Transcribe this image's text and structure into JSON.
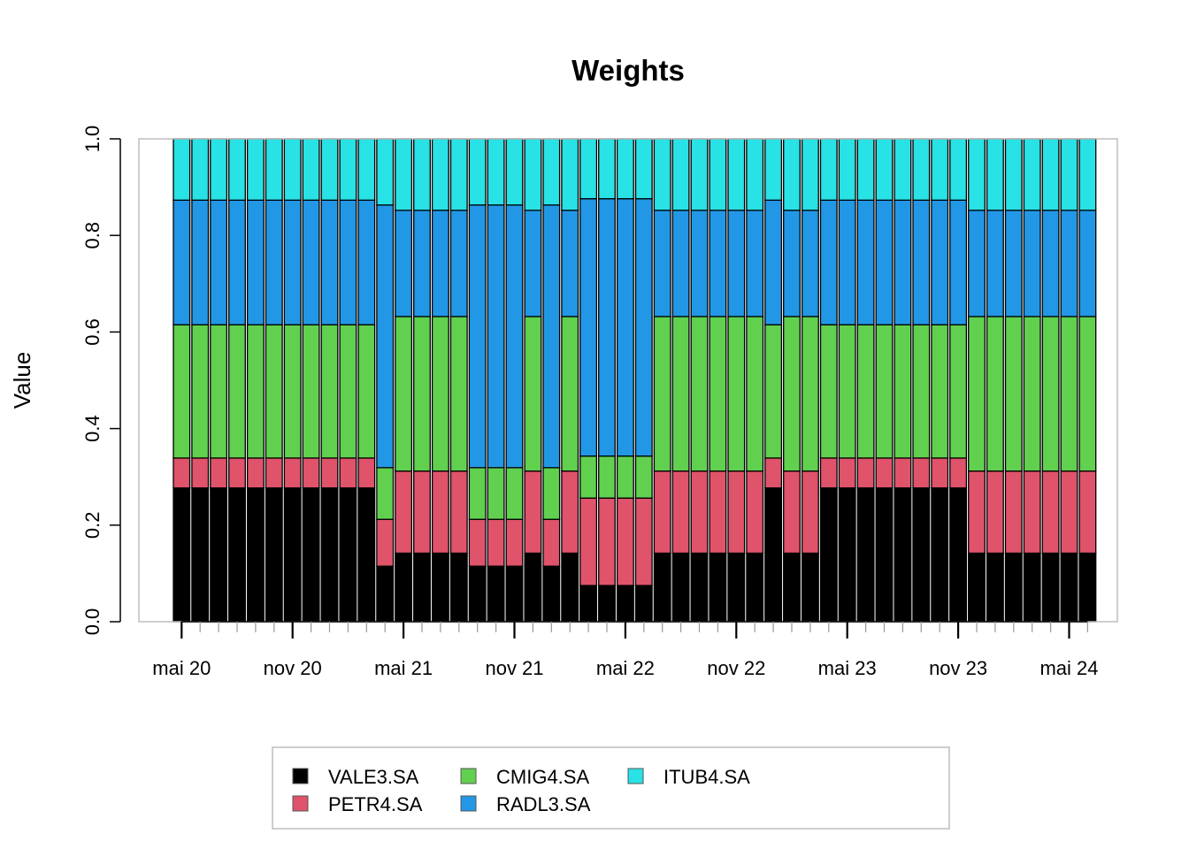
{
  "chart_data": {
    "type": "bar",
    "stacked": true,
    "title": "Weights",
    "xlabel": "",
    "ylabel": "Value",
    "ylim": [
      0,
      1
    ],
    "y_ticks": [
      "0.0",
      "0.2",
      "0.4",
      "0.6",
      "0.8",
      "1.0"
    ],
    "x_tick_labels": [
      "mai 20",
      "nov 20",
      "mai 21",
      "nov 21",
      "mai 22",
      "nov 22",
      "mai 23",
      "nov 23",
      "mai 24"
    ],
    "categories": [
      "2020-05",
      "2020-06",
      "2020-07",
      "2020-08",
      "2020-09",
      "2020-10",
      "2020-11",
      "2020-12",
      "2021-01",
      "2021-02",
      "2021-03",
      "2021-04",
      "2021-05",
      "2021-06",
      "2021-07",
      "2021-08",
      "2021-09",
      "2021-10",
      "2021-11",
      "2021-12",
      "2022-01",
      "2022-02",
      "2022-03",
      "2022-04",
      "2022-05",
      "2022-06",
      "2022-07",
      "2022-08",
      "2022-09",
      "2022-10",
      "2022-11",
      "2022-12",
      "2023-01",
      "2023-02",
      "2023-03",
      "2023-04",
      "2023-05",
      "2023-06",
      "2023-07",
      "2023-08",
      "2023-09",
      "2023-10",
      "2023-11",
      "2023-12",
      "2024-01",
      "2024-02",
      "2024-03",
      "2024-04",
      "2024-05",
      "2024-06"
    ],
    "series": [
      {
        "name": "VALE3.SA",
        "color": "#000000",
        "values": [
          0.277,
          0.277,
          0.277,
          0.277,
          0.277,
          0.277,
          0.277,
          0.277,
          0.277,
          0.277,
          0.277,
          0.115,
          0.142,
          0.142,
          0.142,
          0.142,
          0.115,
          0.115,
          0.115,
          0.142,
          0.115,
          0.142,
          0.075,
          0.075,
          0.075,
          0.075,
          0.142,
          0.142,
          0.142,
          0.142,
          0.142,
          0.142,
          0.277,
          0.142,
          0.142,
          0.277,
          0.277,
          0.277,
          0.277,
          0.277,
          0.277,
          0.277,
          0.277,
          0.142,
          0.142,
          0.142,
          0.142,
          0.142,
          0.142,
          0.142
        ]
      },
      {
        "name": "PETR4.SA",
        "color": "#df536b",
        "values": [
          0.062,
          0.062,
          0.062,
          0.062,
          0.062,
          0.062,
          0.062,
          0.062,
          0.062,
          0.062,
          0.062,
          0.097,
          0.17,
          0.17,
          0.17,
          0.17,
          0.097,
          0.097,
          0.097,
          0.17,
          0.097,
          0.17,
          0.181,
          0.181,
          0.181,
          0.181,
          0.17,
          0.17,
          0.17,
          0.17,
          0.17,
          0.17,
          0.062,
          0.17,
          0.17,
          0.062,
          0.062,
          0.062,
          0.062,
          0.062,
          0.062,
          0.062,
          0.062,
          0.17,
          0.17,
          0.17,
          0.17,
          0.17,
          0.17,
          0.17
        ]
      },
      {
        "name": "CMIG4.SA",
        "color": "#61d04f",
        "values": [
          0.276,
          0.276,
          0.276,
          0.276,
          0.276,
          0.276,
          0.276,
          0.276,
          0.276,
          0.276,
          0.276,
          0.107,
          0.32,
          0.32,
          0.32,
          0.32,
          0.107,
          0.107,
          0.107,
          0.32,
          0.107,
          0.32,
          0.087,
          0.087,
          0.087,
          0.087,
          0.32,
          0.32,
          0.32,
          0.32,
          0.32,
          0.32,
          0.276,
          0.32,
          0.32,
          0.276,
          0.276,
          0.276,
          0.276,
          0.276,
          0.276,
          0.276,
          0.276,
          0.32,
          0.32,
          0.32,
          0.32,
          0.32,
          0.32,
          0.32
        ]
      },
      {
        "name": "RADL3.SA",
        "color": "#2297e6",
        "values": [
          0.258,
          0.258,
          0.258,
          0.258,
          0.258,
          0.258,
          0.258,
          0.258,
          0.258,
          0.258,
          0.258,
          0.544,
          0.22,
          0.22,
          0.22,
          0.22,
          0.544,
          0.544,
          0.544,
          0.22,
          0.544,
          0.22,
          0.533,
          0.533,
          0.533,
          0.533,
          0.22,
          0.22,
          0.22,
          0.22,
          0.22,
          0.22,
          0.258,
          0.22,
          0.22,
          0.258,
          0.258,
          0.258,
          0.258,
          0.258,
          0.258,
          0.258,
          0.258,
          0.22,
          0.22,
          0.22,
          0.22,
          0.22,
          0.22,
          0.22
        ]
      },
      {
        "name": "ITUB4.SA",
        "color": "#28e2e5",
        "values": [
          0.127,
          0.127,
          0.127,
          0.127,
          0.127,
          0.127,
          0.127,
          0.127,
          0.127,
          0.127,
          0.127,
          0.137,
          0.148,
          0.148,
          0.148,
          0.148,
          0.137,
          0.137,
          0.137,
          0.148,
          0.137,
          0.148,
          0.124,
          0.124,
          0.124,
          0.124,
          0.148,
          0.148,
          0.148,
          0.148,
          0.148,
          0.148,
          0.127,
          0.148,
          0.148,
          0.127,
          0.127,
          0.127,
          0.127,
          0.127,
          0.127,
          0.127,
          0.127,
          0.148,
          0.148,
          0.148,
          0.148,
          0.148,
          0.148,
          0.148
        ]
      }
    ],
    "legend": {
      "placement": "bottom",
      "entries": [
        {
          "label": "VALE3.SA",
          "color": "#000000"
        },
        {
          "label": "PETR4.SA",
          "color": "#df536b"
        },
        {
          "label": "CMIG4.SA",
          "color": "#61d04f"
        },
        {
          "label": "RADL3.SA",
          "color": "#2297e6"
        },
        {
          "label": "ITUB4.SA",
          "color": "#28e2e5"
        }
      ]
    },
    "grid": false
  }
}
